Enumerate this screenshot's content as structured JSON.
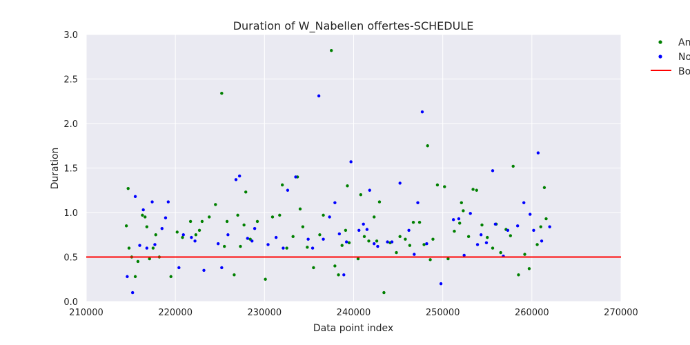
{
  "chart_data": {
    "type": "scatter",
    "title": "Duration of W_Nabellen offertes-SCHEDULE",
    "xlabel": "Data point index",
    "ylabel": "Duration",
    "xlim": [
      210000,
      270000
    ],
    "ylim": [
      0.0,
      3.0
    ],
    "xticks": [
      "210000",
      "220000",
      "230000",
      "240000",
      "250000",
      "260000",
      "270000"
    ],
    "xtick_values": [
      210000,
      220000,
      230000,
      240000,
      250000,
      260000,
      270000
    ],
    "yticks": [
      "0.0",
      "0.5",
      "1.0",
      "1.5",
      "2.0",
      "2.5",
      "3.0"
    ],
    "ytick_values": [
      0.0,
      0.5,
      1.0,
      1.5,
      2.0,
      2.5,
      3.0
    ],
    "grid": true,
    "legend_position": "right, outside top",
    "colors": {
      "plot_background": "#eaeaf2",
      "grid": "#ffffff",
      "series_green": "#008000",
      "series_blue": "#0000ff",
      "boundary": "#ff0000"
    },
    "threshold": {
      "name": "Bo",
      "y": 0.5
    },
    "series": [
      {
        "name": "An",
        "color": "#008000",
        "points": [
          [
            214500,
            0.85
          ],
          [
            214700,
            1.27
          ],
          [
            214800,
            0.6
          ],
          [
            215100,
            0.5
          ],
          [
            215500,
            0.28
          ],
          [
            215800,
            0.45
          ],
          [
            216300,
            0.97
          ],
          [
            216600,
            0.95
          ],
          [
            216800,
            0.84
          ],
          [
            217100,
            0.48
          ],
          [
            217500,
            0.6
          ],
          [
            217800,
            0.75
          ],
          [
            218200,
            0.5
          ],
          [
            219500,
            0.28
          ],
          [
            220200,
            0.78
          ],
          [
            220800,
            0.72
          ],
          [
            221700,
            0.9
          ],
          [
            222300,
            0.75
          ],
          [
            222700,
            0.8
          ],
          [
            223000,
            0.9
          ],
          [
            223800,
            0.95
          ],
          [
            224500,
            1.09
          ],
          [
            225200,
            2.34
          ],
          [
            225500,
            0.62
          ],
          [
            225800,
            0.9
          ],
          [
            226600,
            0.3
          ],
          [
            227000,
            0.97
          ],
          [
            227300,
            0.62
          ],
          [
            227700,
            0.86
          ],
          [
            227900,
            1.23
          ],
          [
            228400,
            0.7
          ],
          [
            229200,
            0.9
          ],
          [
            230100,
            0.25
          ],
          [
            230900,
            0.95
          ],
          [
            231700,
            0.97
          ],
          [
            232000,
            1.31
          ],
          [
            232500,
            0.6
          ],
          [
            233200,
            0.73
          ],
          [
            233700,
            1.4
          ],
          [
            234000,
            1.04
          ],
          [
            234300,
            0.84
          ],
          [
            234800,
            0.61
          ],
          [
            235500,
            0.38
          ],
          [
            236200,
            0.75
          ],
          [
            236600,
            0.97
          ],
          [
            237500,
            2.82
          ],
          [
            237900,
            0.4
          ],
          [
            238300,
            0.3
          ],
          [
            238700,
            0.63
          ],
          [
            239100,
            0.8
          ],
          [
            239300,
            1.3
          ],
          [
            239500,
            0.66
          ],
          [
            240500,
            0.48
          ],
          [
            240800,
            1.2
          ],
          [
            241200,
            0.73
          ],
          [
            241700,
            0.68
          ],
          [
            242300,
            0.95
          ],
          [
            242600,
            0.68
          ],
          [
            242900,
            1.12
          ],
          [
            243400,
            0.1
          ],
          [
            244100,
            0.66
          ],
          [
            244800,
            0.55
          ],
          [
            245200,
            0.73
          ],
          [
            245800,
            0.7
          ],
          [
            246300,
            0.63
          ],
          [
            246700,
            0.89
          ],
          [
            247400,
            0.89
          ],
          [
            247900,
            0.64
          ],
          [
            248300,
            1.75
          ],
          [
            248600,
            0.47
          ],
          [
            248900,
            0.7
          ],
          [
            249400,
            1.31
          ],
          [
            250200,
            1.29
          ],
          [
            250600,
            0.48
          ],
          [
            251300,
            0.79
          ],
          [
            251900,
            0.88
          ],
          [
            252100,
            1.11
          ],
          [
            252300,
            1.02
          ],
          [
            252900,
            0.73
          ],
          [
            253400,
            1.26
          ],
          [
            253800,
            1.25
          ],
          [
            254400,
            0.86
          ],
          [
            255000,
            0.72
          ],
          [
            255600,
            0.6
          ],
          [
            256000,
            0.87
          ],
          [
            256500,
            0.55
          ],
          [
            257100,
            0.81
          ],
          [
            257600,
            0.74
          ],
          [
            257900,
            1.52
          ],
          [
            258500,
            0.3
          ],
          [
            259200,
            0.53
          ],
          [
            259700,
            0.37
          ],
          [
            260600,
            0.64
          ],
          [
            261000,
            0.84
          ],
          [
            261400,
            1.28
          ],
          [
            261600,
            0.93
          ]
        ]
      },
      {
        "name": "No",
        "color": "#0000ff",
        "points": [
          [
            214600,
            0.28
          ],
          [
            215200,
            0.1
          ],
          [
            215500,
            1.18
          ],
          [
            216000,
            0.63
          ],
          [
            216400,
            1.03
          ],
          [
            216800,
            0.6
          ],
          [
            217400,
            1.12
          ],
          [
            217700,
            0.64
          ],
          [
            218500,
            0.82
          ],
          [
            218900,
            0.94
          ],
          [
            219200,
            1.12
          ],
          [
            220400,
            0.38
          ],
          [
            220900,
            0.75
          ],
          [
            221800,
            0.72
          ],
          [
            222200,
            0.68
          ],
          [
            223200,
            0.35
          ],
          [
            224800,
            0.65
          ],
          [
            225200,
            0.38
          ],
          [
            225900,
            0.75
          ],
          [
            226800,
            1.37
          ],
          [
            227200,
            1.41
          ],
          [
            228100,
            0.71
          ],
          [
            228600,
            0.68
          ],
          [
            228900,
            0.82
          ],
          [
            230400,
            0.64
          ],
          [
            231300,
            0.72
          ],
          [
            232100,
            0.6
          ],
          [
            232600,
            1.25
          ],
          [
            233500,
            1.4
          ],
          [
            234900,
            0.7
          ],
          [
            235400,
            0.6
          ],
          [
            236100,
            2.31
          ],
          [
            236600,
            0.7
          ],
          [
            237300,
            0.95
          ],
          [
            237900,
            1.11
          ],
          [
            238400,
            0.76
          ],
          [
            238900,
            0.3
          ],
          [
            239200,
            0.67
          ],
          [
            239700,
            1.57
          ],
          [
            240600,
            0.8
          ],
          [
            241100,
            0.87
          ],
          [
            241500,
            0.81
          ],
          [
            241800,
            1.25
          ],
          [
            242300,
            0.65
          ],
          [
            242700,
            0.62
          ],
          [
            243800,
            0.67
          ],
          [
            244300,
            0.67
          ],
          [
            245200,
            1.33
          ],
          [
            246200,
            0.8
          ],
          [
            246800,
            0.53
          ],
          [
            247200,
            1.11
          ],
          [
            247700,
            2.13
          ],
          [
            248200,
            0.65
          ],
          [
            249800,
            0.2
          ],
          [
            251200,
            0.92
          ],
          [
            251800,
            0.93
          ],
          [
            252400,
            0.52
          ],
          [
            253100,
            0.99
          ],
          [
            253900,
            0.64
          ],
          [
            254300,
            0.75
          ],
          [
            254900,
            0.66
          ],
          [
            255600,
            1.47
          ],
          [
            255900,
            0.87
          ],
          [
            256800,
            0.51
          ],
          [
            257300,
            0.8
          ],
          [
            258400,
            0.85
          ],
          [
            259100,
            1.11
          ],
          [
            259800,
            0.98
          ],
          [
            260200,
            0.8
          ],
          [
            260700,
            1.67
          ],
          [
            261100,
            0.68
          ],
          [
            262000,
            0.84
          ]
        ]
      }
    ]
  }
}
